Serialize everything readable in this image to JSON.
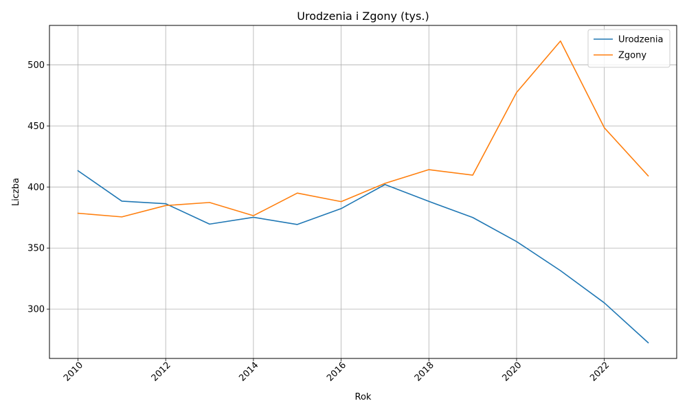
{
  "chart_data": {
    "type": "line",
    "title": "Urodzenia i Zgony (tys.)",
    "xlabel": "Rok",
    "ylabel": "Liczba",
    "x": [
      2010,
      2011,
      2012,
      2013,
      2014,
      2015,
      2016,
      2017,
      2018,
      2019,
      2020,
      2021,
      2022,
      2023
    ],
    "xticks": [
      2010,
      2012,
      2014,
      2016,
      2018,
      2020,
      2022
    ],
    "xtick_labels": [
      "2010",
      "2012",
      "2014",
      "2016",
      "2018",
      "2020",
      "2022"
    ],
    "yticks": [
      300,
      350,
      400,
      450,
      500
    ],
    "ytick_labels": [
      "300",
      "350",
      "400",
      "450",
      "500"
    ],
    "xlim": [
      2009.35,
      2023.65
    ],
    "ylim": [
      259.6,
      532.3
    ],
    "grid": true,
    "legend_position": "top-right",
    "series": [
      {
        "name": "Urodzenia",
        "color": "#1f77b4",
        "values": [
          413.3,
          388.4,
          386.3,
          369.6,
          375.2,
          369.3,
          382.3,
          402.0,
          388.2,
          375.0,
          355.3,
          331.5,
          305.1,
          272.5
        ]
      },
      {
        "name": "Zgony",
        "color": "#ff7f0e",
        "values": [
          378.5,
          375.5,
          384.8,
          387.3,
          376.5,
          395.0,
          388.0,
          403.0,
          414.2,
          409.7,
          477.4,
          519.5,
          448.5,
          409.1
        ]
      }
    ]
  }
}
